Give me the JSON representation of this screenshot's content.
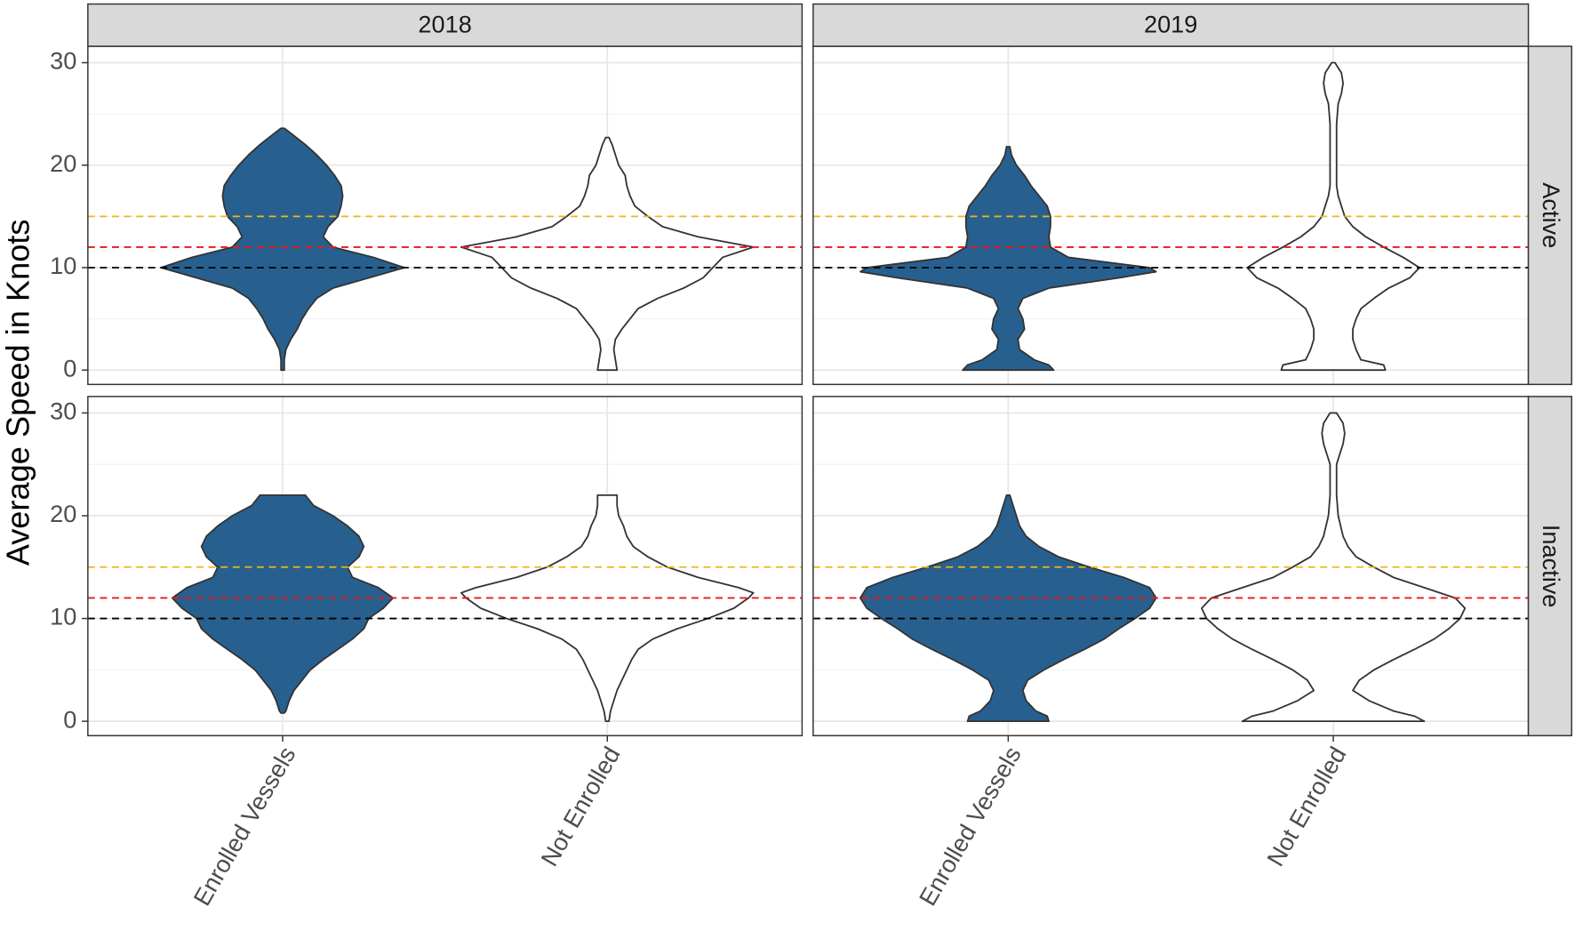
{
  "chart_data": {
    "type": "violin",
    "ylabel": "Average Speed in Knots",
    "columns": [
      "2018",
      "2019"
    ],
    "rows": [
      "Active",
      "Inactive"
    ],
    "categories": [
      "Enrolled Vessels",
      "Not Enrolled"
    ],
    "ylim": [
      -1.4,
      31.6
    ],
    "yticks": [
      0,
      10,
      20,
      30
    ],
    "minor_yticks": [
      5,
      15,
      25
    ],
    "grid": true,
    "reference_lines": [
      {
        "value": 10,
        "color": "#000000"
      },
      {
        "value": 12,
        "color": "#e8191c"
      },
      {
        "value": 15,
        "color": "#f0b41e"
      }
    ],
    "violins": [
      {
        "column": 0,
        "row": 0,
        "category": 0,
        "fill": "#27608f",
        "y": [
          0,
          1,
          2,
          3,
          4,
          5,
          6,
          7,
          8,
          9,
          10,
          11,
          12,
          13,
          14,
          15,
          16,
          17,
          18,
          19,
          20,
          21,
          22,
          23,
          23.6
        ],
        "widths": [
          0.01,
          0.01,
          0.02,
          0.05,
          0.09,
          0.12,
          0.16,
          0.21,
          0.31,
          0.53,
          0.75,
          0.56,
          0.31,
          0.25,
          0.28,
          0.34,
          0.36,
          0.37,
          0.36,
          0.32,
          0.27,
          0.21,
          0.14,
          0.06,
          0.01
        ]
      },
      {
        "column": 0,
        "row": 0,
        "category": 1,
        "fill": "#ffffff",
        "y": [
          0,
          1,
          2,
          3,
          4,
          5,
          6,
          7,
          8,
          9,
          10,
          11,
          12,
          13,
          14,
          15,
          16,
          17,
          18,
          19,
          20,
          21,
          22,
          22.7
        ],
        "widths": [
          0.06,
          0.05,
          0.04,
          0.05,
          0.09,
          0.14,
          0.19,
          0.31,
          0.47,
          0.59,
          0.65,
          0.71,
          0.9,
          0.56,
          0.34,
          0.25,
          0.17,
          0.14,
          0.12,
          0.11,
          0.07,
          0.05,
          0.03,
          0.01
        ]
      },
      {
        "column": 1,
        "row": 0,
        "category": 0,
        "fill": "#27608f",
        "y": [
          0,
          0.5,
          1,
          2,
          3,
          4,
          5,
          6,
          7,
          8,
          9,
          9.6,
          10,
          11,
          12,
          13,
          14,
          15,
          16,
          17,
          18,
          19,
          20,
          21,
          21.8
        ],
        "widths": [
          0.28,
          0.25,
          0.16,
          0.07,
          0.06,
          0.1,
          0.09,
          0.06,
          0.09,
          0.25,
          0.68,
          0.91,
          0.87,
          0.37,
          0.26,
          0.25,
          0.26,
          0.26,
          0.24,
          0.19,
          0.14,
          0.1,
          0.05,
          0.02,
          0.01
        ]
      },
      {
        "column": 1,
        "row": 0,
        "category": 1,
        "fill": "#ffffff",
        "y": [
          0,
          0.5,
          1,
          2,
          3,
          4,
          5,
          6,
          7,
          8,
          9,
          10,
          11,
          12,
          13,
          14,
          15,
          16,
          17,
          18,
          20,
          22,
          24,
          26,
          27,
          28,
          29,
          30
        ],
        "widths": [
          0.32,
          0.31,
          0.17,
          0.14,
          0.12,
          0.12,
          0.14,
          0.17,
          0.25,
          0.34,
          0.47,
          0.53,
          0.43,
          0.31,
          0.2,
          0.12,
          0.07,
          0.05,
          0.03,
          0.02,
          0.02,
          0.02,
          0.02,
          0.03,
          0.05,
          0.06,
          0.05,
          0.01
        ]
      },
      {
        "column": 0,
        "row": 1,
        "category": 0,
        "fill": "#27608f",
        "y": [
          0.8,
          1,
          2,
          3,
          4,
          5,
          6,
          7,
          8,
          9,
          10,
          11,
          12,
          13,
          14,
          15,
          16,
          17,
          18,
          19,
          20,
          21,
          22
        ],
        "widths": [
          0.01,
          0.02,
          0.04,
          0.07,
          0.12,
          0.17,
          0.25,
          0.34,
          0.43,
          0.5,
          0.53,
          0.62,
          0.68,
          0.59,
          0.43,
          0.4,
          0.47,
          0.5,
          0.47,
          0.4,
          0.31,
          0.19,
          0.14
        ]
      },
      {
        "column": 0,
        "row": 1,
        "category": 1,
        "fill": "#ffffff",
        "y": [
          0,
          1,
          2,
          3,
          4,
          5,
          6,
          7,
          8,
          9,
          10,
          11,
          12,
          12.5,
          13,
          14,
          15,
          16,
          17,
          18,
          19,
          20,
          21,
          22
        ],
        "widths": [
          0.01,
          0.02,
          0.04,
          0.06,
          0.09,
          0.12,
          0.15,
          0.19,
          0.28,
          0.43,
          0.62,
          0.78,
          0.87,
          0.9,
          0.81,
          0.56,
          0.37,
          0.25,
          0.16,
          0.12,
          0.1,
          0.07,
          0.06,
          0.06
        ]
      },
      {
        "column": 1,
        "row": 1,
        "category": 0,
        "fill": "#27608f",
        "y": [
          0,
          0.5,
          1,
          2,
          3,
          4,
          5,
          6,
          7,
          8,
          9,
          10,
          11,
          12,
          13,
          14,
          15,
          16,
          17,
          18,
          19,
          20,
          21,
          22
        ],
        "widths": [
          0.25,
          0.24,
          0.17,
          0.11,
          0.09,
          0.12,
          0.22,
          0.34,
          0.47,
          0.59,
          0.68,
          0.78,
          0.87,
          0.91,
          0.87,
          0.71,
          0.5,
          0.31,
          0.19,
          0.11,
          0.07,
          0.05,
          0.03,
          0.01
        ]
      },
      {
        "column": 1,
        "row": 1,
        "category": 1,
        "fill": "#ffffff",
        "y": [
          0,
          0.5,
          1,
          2,
          3,
          4,
          5,
          6,
          7,
          8,
          9,
          10,
          11,
          12,
          13,
          14,
          15,
          16,
          17,
          18,
          20,
          22,
          24,
          25,
          26,
          27,
          28,
          29,
          30
        ],
        "widths": [
          0.56,
          0.5,
          0.37,
          0.22,
          0.12,
          0.16,
          0.25,
          0.37,
          0.5,
          0.62,
          0.71,
          0.78,
          0.81,
          0.75,
          0.56,
          0.37,
          0.25,
          0.14,
          0.09,
          0.06,
          0.03,
          0.02,
          0.02,
          0.02,
          0.04,
          0.06,
          0.07,
          0.06,
          0.02
        ]
      }
    ]
  }
}
